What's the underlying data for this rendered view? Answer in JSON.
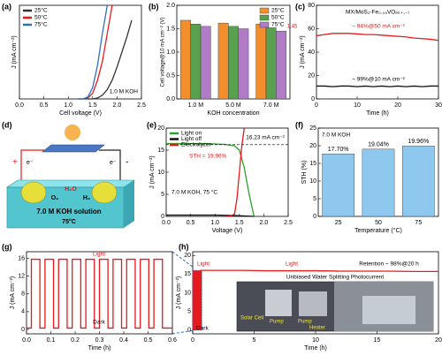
{
  "chart_data": [
    {
      "type": "line",
      "panel_label": "(a)",
      "x_label": "Cell voltage (V)",
      "y_label": "J (mA cm⁻²)",
      "annotations": [
        {
          "text": "1.0 M KOH"
        }
      ],
      "legend": "upper left",
      "x": [
        1.2,
        1.3,
        1.4,
        1.5,
        1.6,
        1.7,
        1.8,
        1.9,
        2.0,
        2.1,
        2.2,
        2.3
      ],
      "series": [
        {
          "name": "25°C",
          "color": "#333333",
          "values": [
            0,
            0,
            0,
            0,
            0.5,
            2,
            5,
            10,
            17,
            25,
            33,
            42
          ]
        },
        {
          "name": "50°C",
          "color": "#e41a1c",
          "values": [
            0,
            0,
            0.5,
            3,
            10,
            20,
            35,
            50,
            null,
            null,
            null,
            null
          ]
        },
        {
          "name": "75°C",
          "color": "#2f6fc1",
          "values": [
            0,
            0,
            1,
            6,
            18,
            35,
            50,
            null,
            null,
            null,
            null,
            null
          ]
        }
      ],
      "xlim": [
        0,
        2.5
      ],
      "xticks": [
        {
          "value": 0,
          "label": "0.0"
        },
        0.5,
        {
          "value": 1,
          "label": "1.0"
        },
        1.5,
        {
          "value": 2,
          "label": "2.0"
        },
        2.5
      ],
      "ylim": [
        0,
        50
      ]
    },
    {
      "type": "bar",
      "panel_label": "(b)",
      "x_label": "KOH concentration",
      "y_label": "Cell voltage@10 mA cm⁻² (V)",
      "legend": "upper right",
      "categories": [
        "1.0 M",
        "5.0 M",
        "7.0 M"
      ],
      "series": [
        {
          "name": "25°C",
          "color": "#f28e2b",
          "values": [
            1.68,
            1.62,
            1.6
          ]
        },
        {
          "name": "50°C",
          "color": "#59a14f",
          "values": [
            1.6,
            1.55,
            1.52
          ]
        },
        {
          "name": "75°C",
          "color": "#b07cc6",
          "values": [
            1.55,
            1.5,
            1.45
          ],
          "value_labels": [
            null,
            null,
            "1.45"
          ]
        }
      ],
      "ylim": [
        0,
        2
      ],
      "yticks": [
        {
          "value": 0,
          "label": "0.0"
        },
        0.5,
        {
          "value": 1,
          "label": "1.0"
        },
        1.5,
        {
          "value": 2,
          "label": "2.0"
        }
      ]
    },
    {
      "type": "line",
      "panel_label": "(c)",
      "title": "MX/MoS₂-Fe₀.₀₅VOₚᵢ₍₊,₋₎",
      "x_label": "Time (h)",
      "y_label": "J (mA cm⁻²)",
      "annotations": [
        {
          "text": "~ 94%@50 mA cm⁻²",
          "color": "#e41a1c"
        },
        {
          "text": "~ 99%@10 mA cm⁻²",
          "color": "#000000"
        }
      ],
      "x": [
        0,
        2,
        4,
        6,
        8,
        10,
        12,
        14,
        16,
        18,
        20,
        22,
        24,
        26,
        28,
        30
      ],
      "series": [
        {
          "color": "#e41a1c",
          "values": [
            54,
            55,
            56,
            56,
            56,
            55.5,
            55,
            55,
            54.5,
            54,
            53.5,
            53,
            52,
            51.5,
            51,
            50
          ]
        },
        {
          "color": "#111111",
          "values": [
            11,
            11,
            10.5,
            11,
            11,
            10.5,
            11,
            10.5,
            11,
            10.5,
            11,
            10.5,
            11,
            10.5,
            11,
            11
          ]
        }
      ],
      "xlim": [
        0,
        30
      ],
      "xticks": [
        0,
        10,
        20,
        30
      ],
      "ylim": [
        0,
        80
      ],
      "yticks": [
        0,
        20,
        40,
        60,
        80
      ]
    },
    {
      "type": "line",
      "panel_label": "(e)",
      "x_label": "Voltage (V)",
      "y_label": "J (mA cm⁻²)",
      "legend": "upper left",
      "hline": 16.23,
      "annotations": [
        {
          "text": "16.23 mA cm⁻²",
          "color": "#000000"
        },
        {
          "text": "STH = 19.96%",
          "color": "#e41a1c"
        },
        {
          "text": "7.0 M KOH, 75 °C",
          "color": "#000000"
        }
      ],
      "series": [
        {
          "name": "Light on",
          "color": "#2ca02c",
          "x": [
            0,
            0.2,
            0.4,
            0.6,
            0.8,
            1.0,
            1.2,
            1.4,
            1.5,
            1.6,
            1.7,
            1.8
          ],
          "values": [
            16.5,
            16.5,
            16.5,
            16.5,
            16.5,
            16.4,
            16.3,
            16,
            15,
            11,
            5,
            0
          ]
        },
        {
          "name": "Light off",
          "color": "#111111",
          "x": [
            0,
            0.5,
            1.0,
            1.4,
            1.8
          ],
          "values": [
            0.3,
            0.3,
            0.3,
            0.2,
            0
          ]
        },
        {
          "name": "Electrolyzer",
          "color": "#e41a1c",
          "x": [
            1.2,
            1.3,
            1.4,
            1.45,
            1.5,
            1.55,
            1.6
          ],
          "values": [
            0,
            0,
            0.5,
            4,
            10,
            16,
            20
          ]
        }
      ],
      "xlim": [
        0,
        2.5
      ],
      "xticks": [
        {
          "value": 0,
          "label": "0.0"
        },
        0.5,
        {
          "value": 1,
          "label": "1.0"
        },
        1.5,
        {
          "value": 2,
          "label": "2.0"
        },
        2.5
      ],
      "ylim": [
        0,
        20
      ],
      "yticks": [
        0,
        5,
        10,
        15,
        20
      ]
    },
    {
      "type": "bar",
      "panel_label": "(f)",
      "x_label": "Temperature (°C)",
      "y_label": "STH (%)",
      "annotations": [
        {
          "text": "7.0 M KOH",
          "color": "#000000"
        }
      ],
      "categories": [
        "25",
        "50",
        "75"
      ],
      "values": [
        17.7,
        19.04,
        19.96
      ],
      "value_labels": [
        "17.70%",
        "19.04%",
        "19.96%"
      ],
      "color": "#8fc8ee",
      "ylim": [
        0,
        25
      ],
      "yticks": [
        0,
        5,
        10,
        15,
        20,
        25
      ]
    },
    {
      "type": "line",
      "panel_label": "(g)",
      "x_label": "Time (h)",
      "y_label": "J (mA cm⁻²)",
      "annotations": [
        {
          "text": "Light",
          "color": "#e41a1c"
        },
        {
          "text": "Dark",
          "color": "#000000"
        }
      ],
      "x": [
        0,
        0.02,
        0.02,
        0.055,
        0.055,
        0.076,
        0.076,
        0.111,
        0.111,
        0.132,
        0.132,
        0.167,
        0.167,
        0.188,
        0.188,
        0.223,
        0.223,
        0.244,
        0.244,
        0.279,
        0.279,
        0.3,
        0.3,
        0.335,
        0.335,
        0.356,
        0.356,
        0.391,
        0.391,
        0.412,
        0.412,
        0.447,
        0.447,
        0.468,
        0.468,
        0.503,
        0.503,
        0.524,
        0.524,
        0.559,
        0.559,
        0.6
      ],
      "series": [
        {
          "color": "#e41a1c",
          "values": [
            0.3,
            0.3,
            15.8,
            15.8,
            0.3,
            0.3,
            15.8,
            15.8,
            0.3,
            0.3,
            15.8,
            15.8,
            0.3,
            0.3,
            15.8,
            15.8,
            0.3,
            0.3,
            15.8,
            15.8,
            0.3,
            0.3,
            15.8,
            15.8,
            0.3,
            0.3,
            15.8,
            15.8,
            0.3,
            0.3,
            15.8,
            15.8,
            0.3,
            0.3,
            15.8,
            15.8,
            0.3,
            0.3,
            15.8,
            15.8,
            0.3,
            0.3
          ]
        }
      ],
      "xlim": [
        0,
        0.6
      ],
      "xticks": [
        {
          "value": 0,
          "label": "0.0"
        },
        0.1,
        0.2,
        0.3,
        0.4,
        0.5,
        0.6
      ],
      "ylim": [
        -1,
        17.5
      ],
      "yticks": [
        0,
        4,
        8,
        12,
        16
      ]
    },
    {
      "type": "line",
      "panel_label": "(h)",
      "x_label": "Time (h)",
      "y_label": "J (mA cm⁻²)",
      "annotations": [
        {
          "text": "Light",
          "color": "#e41a1c"
        },
        {
          "text": "Light",
          "color": "#e41a1c"
        },
        {
          "text": "Dark",
          "color": "#000000"
        },
        {
          "text": "Retention ~ 98%@20 h",
          "color": "#000000"
        }
      ],
      "inset": {
        "title": "Unbiased Water Splitting Photocurrent",
        "labels": [
          "Solar Cell",
          "Pump",
          "Pump",
          "Heater"
        ]
      },
      "series": [
        {
          "color": "#e41a1c",
          "x": [
            0.6,
            2,
            4,
            6,
            8,
            10,
            12,
            14,
            16,
            18,
            20
          ],
          "values": [
            16,
            16,
            16,
            15.9,
            15.9,
            15.9,
            15.8,
            15.8,
            15.8,
            15.7,
            15.7
          ]
        }
      ],
      "xlim": [
        0,
        20
      ],
      "xticks": [
        0,
        5,
        10,
        15,
        20
      ],
      "ylim": [
        -1,
        21
      ],
      "yticks": [
        0,
        5,
        10,
        15,
        20
      ]
    }
  ],
  "diagram": {
    "panel_label": "(d)",
    "electron_left": "e⁻",
    "electron_right": "e⁻",
    "plus": "+",
    "minus": "-",
    "water": "H₂O",
    "oxygen": "O₂",
    "hydrogen": "H₂",
    "solution": "7.0 M KOH solution",
    "temperature": "75°C"
  }
}
